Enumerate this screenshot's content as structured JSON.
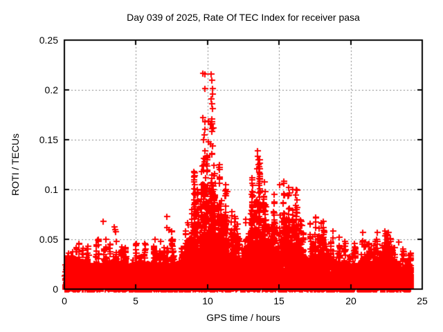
{
  "chart_data": {
    "type": "scatter",
    "title": "Day 039 of 2025, Rate Of TEC Index for receiver pasa",
    "xlabel": "GPS time / hours",
    "ylabel": "ROTI / TECUs",
    "xlim": [
      0,
      25
    ],
    "ylim": [
      0,
      0.25
    ],
    "xticks": [
      0,
      5,
      10,
      15,
      20,
      25
    ],
    "yticks": [
      0,
      0.05,
      0.1,
      0.15,
      0.2,
      0.25
    ],
    "xtick_labels": [
      "0",
      "5",
      "10",
      "15",
      "20",
      "25"
    ],
    "ytick_labels": [
      "0",
      "0.05",
      "0.1",
      "0.15",
      "0.2",
      "0.25"
    ],
    "grid": "dashed-at-major-ticks",
    "legend": "none",
    "marker": "plus",
    "marker_color": "#ff0000",
    "grid_color": "#858585",
    "border_color": "#000000",
    "data_extent_hours": [
      0,
      24.2
    ],
    "bin_width_hours": 0.5,
    "bin_spike_max": [
      0.036,
      0.042,
      0.046,
      0.043,
      0.05,
      0.05,
      0.045,
      0.048,
      0.042,
      0.044,
      0.046,
      0.046,
      0.05,
      0.048,
      0.058,
      0.05,
      0.058,
      0.08,
      0.118,
      0.168,
      0.168,
      0.125,
      0.105,
      0.078,
      0.065,
      0.07,
      0.112,
      0.13,
      0.085,
      0.095,
      0.108,
      0.102,
      0.1,
      0.068,
      0.066,
      0.072,
      0.068,
      0.058,
      0.052,
      0.048,
      0.046,
      0.057,
      0.046,
      0.057,
      0.058,
      0.057,
      0.042,
      0.04,
      0.036
    ],
    "bin_solid_top": [
      0.03,
      0.03,
      0.028,
      0.026,
      0.026,
      0.025,
      0.025,
      0.026,
      0.024,
      0.024,
      0.025,
      0.026,
      0.026,
      0.025,
      0.026,
      0.026,
      0.028,
      0.03,
      0.03,
      0.034,
      0.04,
      0.038,
      0.032,
      0.03,
      0.03,
      0.03,
      0.032,
      0.034,
      0.032,
      0.032,
      0.034,
      0.034,
      0.032,
      0.03,
      0.03,
      0.03,
      0.028,
      0.028,
      0.026,
      0.024,
      0.024,
      0.026,
      0.024,
      0.028,
      0.036,
      0.038,
      0.026,
      0.024,
      0.022
    ],
    "feature_points": [
      [
        2.71,
        0.068
      ],
      [
        3.5,
        0.0625
      ],
      [
        3.55,
        0.06
      ],
      [
        3.6,
        0.0575
      ],
      [
        7.16,
        0.0729
      ],
      [
        7.16,
        0.0618
      ],
      [
        7.3,
        0.06
      ],
      [
        9.67,
        0.217
      ],
      [
        9.81,
        0.216
      ],
      [
        10.23,
        0.216
      ],
      [
        10.31,
        0.21
      ],
      [
        9.83,
        0.2015
      ],
      [
        10.35,
        0.2015
      ],
      [
        10.33,
        0.196
      ],
      [
        10.24,
        0.191
      ],
      [
        10.3,
        0.186
      ],
      [
        10.36,
        0.181
      ],
      [
        9.67,
        0.172
      ],
      [
        10.28,
        0.171
      ],
      [
        10.07,
        0.169
      ],
      [
        10.18,
        0.165
      ],
      [
        10.38,
        0.162
      ],
      [
        10.28,
        0.158
      ],
      [
        9.75,
        0.155
      ],
      [
        9.7,
        0.15
      ],
      [
        10.05,
        0.148
      ],
      [
        10.22,
        0.146
      ],
      [
        10.33,
        0.144
      ],
      [
        13.5,
        0.139
      ],
      [
        13.47,
        0.133
      ],
      [
        13.53,
        0.13
      ],
      [
        13.55,
        0.125
      ],
      [
        13.45,
        0.121
      ],
      [
        13.1,
        0.106
      ],
      [
        11.25,
        0.105
      ],
      [
        11.35,
        0.098
      ],
      [
        15.05,
        0.105
      ],
      [
        15.95,
        0.1
      ],
      [
        23.35,
        0.047
      ]
    ],
    "seed": 1337
  }
}
